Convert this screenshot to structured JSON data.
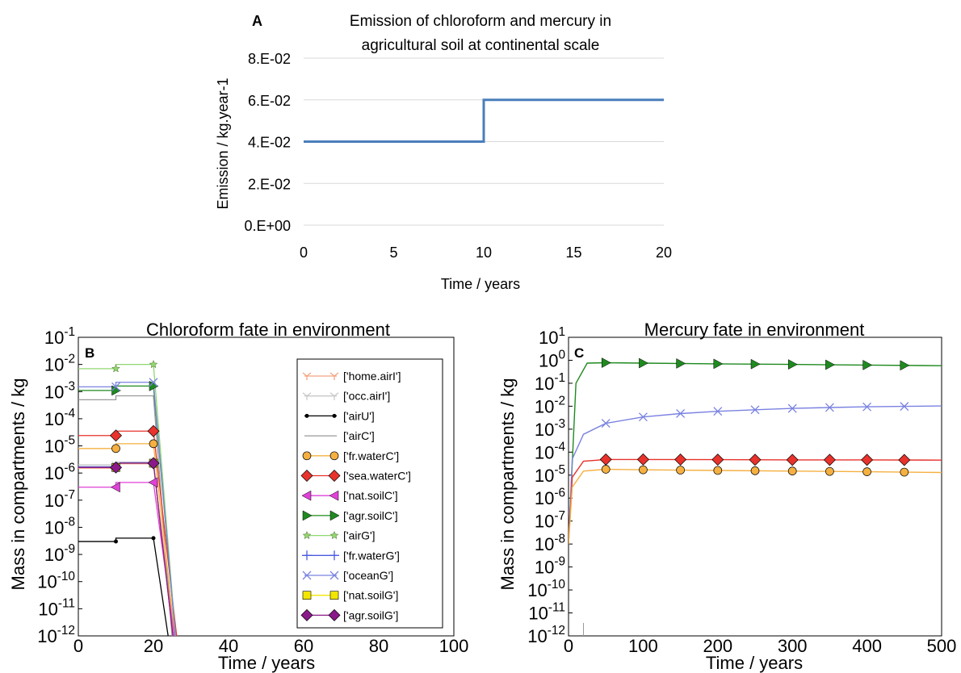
{
  "chart_data": [
    {
      "panel": "A",
      "type": "line",
      "title": "Emission of chloroform and mercury in agricultural soil at continental scale",
      "title_lines": [
        "Emission of chloroform and mercury in",
        "agricultural soil at continental scale"
      ],
      "xlabel": "Time / years",
      "ylabel": "Emission / kg.year-1",
      "xlim": [
        0,
        20
      ],
      "ylim": [
        0,
        0.08
      ],
      "xticks": [
        "0",
        "5",
        "10",
        "15",
        "20"
      ],
      "yticks": [
        "0.E+00",
        "2.E-02",
        "4.E-02",
        "6.E-02",
        "8.E-02"
      ],
      "grid": "horizontal",
      "colors": {
        "line": "#4a7ebb",
        "grid": "#d9d9d9"
      },
      "series": [
        {
          "x": [
            0,
            10,
            10,
            20
          ],
          "y": [
            0.04,
            0.04,
            0.06,
            0.06
          ]
        }
      ]
    },
    {
      "panel": "B",
      "type": "line",
      "title": "Chloroform fate in environment",
      "xlabel": "Time / years",
      "ylabel": "Mass in compartments / kg",
      "xlim": [
        0,
        100
      ],
      "ylim_exp": [
        -12,
        -1
      ],
      "scale": "log",
      "xticks": [
        "0",
        "20",
        "40",
        "60",
        "80",
        "100"
      ],
      "yticks_exp": [
        "-12",
        "-11",
        "-10",
        "-9",
        "-8",
        "-7",
        "-6",
        "-5",
        "-4",
        "-3",
        "-2",
        "-1"
      ],
      "legend_position": "right",
      "series": [
        {
          "name": "['home.airI']",
          "color": "#f4a582",
          "marker": "tri",
          "y1": 1.5e-06,
          "y2": 2.2e-06,
          "x_end": 26.5
        },
        {
          "name": "['occ.airI']",
          "color": "#c8c8c8",
          "marker": "tri",
          "y1": 2e-06,
          "y2": 2.5e-06,
          "x_end": 26
        },
        {
          "name": "['airU']",
          "color": "#000000",
          "marker": "dot",
          "y1": 3e-09,
          "y2": 4e-09,
          "x_end": 25
        },
        {
          "name": "['airC']",
          "color": "#999999",
          "marker": "none",
          "y1": 0.0005,
          "y2": 0.0007,
          "x_end": 25.5
        },
        {
          "name": "['fr.waterC']",
          "color": "#f5b041",
          "marker": "circle",
          "y1": 8e-06,
          "y2": 1.2e-05,
          "x_end": 26.5
        },
        {
          "name": "['sea.waterC']",
          "color": "#e8322b",
          "marker": "diamond",
          "y1": 2.4e-05,
          "y2": 3.5e-05,
          "x_end": 27
        },
        {
          "name": "['nat.soilC']",
          "color": "#e040d8",
          "marker": "tri-left",
          "y1": 3e-07,
          "y2": 4.5e-07,
          "x_end": 26.5
        },
        {
          "name": "['agr.soilC']",
          "color": "#1f8a1f",
          "marker": "tri-right",
          "y1": 0.0011,
          "y2": 0.0016,
          "x_end": 26.5
        },
        {
          "name": "['airG']",
          "color": "#90d870",
          "marker": "star",
          "y1": 0.007,
          "y2": 0.01,
          "x_end": 26.5
        },
        {
          "name": "['fr.waterG']",
          "color": "#4a5be0",
          "marker": "plus",
          "y1": 1.7e-06,
          "y2": 2.4e-06,
          "x_end": 26
        },
        {
          "name": "['oceanG']",
          "color": "#7a82e0",
          "marker": "x",
          "y1": 0.0015,
          "y2": 0.0022,
          "x_end": 26.5
        },
        {
          "name": "['nat.soilG']",
          "color": "#f2e600",
          "marker": "square",
          "y1": 1.6e-06,
          "y2": 2.3e-06,
          "x_end": 26
        },
        {
          "name": "['agr.soilG']",
          "color": "#8a1a8a",
          "marker": "diamond",
          "y1": 1.6e-06,
          "y2": 2.3e-06,
          "x_end": 26
        }
      ]
    },
    {
      "panel": "C",
      "type": "line",
      "title": "Mercury fate in environment",
      "xlabel": "Time / years",
      "ylabel": "Mass in compartments / kg",
      "xlim": [
        0,
        500
      ],
      "ylim_exp": [
        -12,
        1
      ],
      "scale": "log",
      "xticks": [
        "0",
        "100",
        "200",
        "300",
        "400",
        "500"
      ],
      "yticks_exp": [
        "-12",
        "-11",
        "-10",
        "-9",
        "-8",
        "-7",
        "-6",
        "-5",
        "-4",
        "-3",
        "-2",
        "-1",
        "0",
        "1"
      ],
      "marker_x": [
        50,
        100,
        150,
        200,
        250,
        300,
        350,
        400,
        450
      ],
      "series": [
        {
          "name": "['agr.soilC']",
          "color": "#1f8a1f",
          "marker": "tri-right",
          "x": [
            0,
            10,
            25,
            50,
            100,
            200,
            300,
            400,
            500
          ],
          "y": [
            1e-08,
            0.1,
            0.75,
            0.78,
            0.75,
            0.7,
            0.66,
            0.62,
            0.58
          ]
        },
        {
          "name": "['oceanG']",
          "color": "#7a82e0",
          "marker": "x",
          "x": [
            0,
            5,
            20,
            50,
            100,
            150,
            200,
            250,
            300,
            350,
            400,
            450,
            500
          ],
          "y": [
            1e-08,
            5e-05,
            0.0006,
            0.0018,
            0.0034,
            0.0048,
            0.006,
            0.007,
            0.008,
            0.0088,
            0.0094,
            0.0098,
            0.0102
          ]
        },
        {
          "name": "['sea.waterC']",
          "color": "#e8322b",
          "marker": "diamond",
          "x": [
            0,
            5,
            20,
            50,
            100,
            200,
            300,
            400,
            500
          ],
          "y": [
            1e-08,
            8e-06,
            4e-05,
            4.8e-05,
            4.8e-05,
            4.7e-05,
            4.6e-05,
            4.6e-05,
            4.5e-05
          ]
        },
        {
          "name": "['fr.waterC']",
          "color": "#f5b041",
          "marker": "circle",
          "x": [
            0,
            5,
            20,
            50,
            100,
            200,
            300,
            400,
            500
          ],
          "y": [
            1e-08,
            3e-06,
            1.5e-05,
            1.8e-05,
            1.7e-05,
            1.6e-05,
            1.5e-05,
            1.4e-05,
            1.3e-05
          ]
        }
      ]
    }
  ]
}
